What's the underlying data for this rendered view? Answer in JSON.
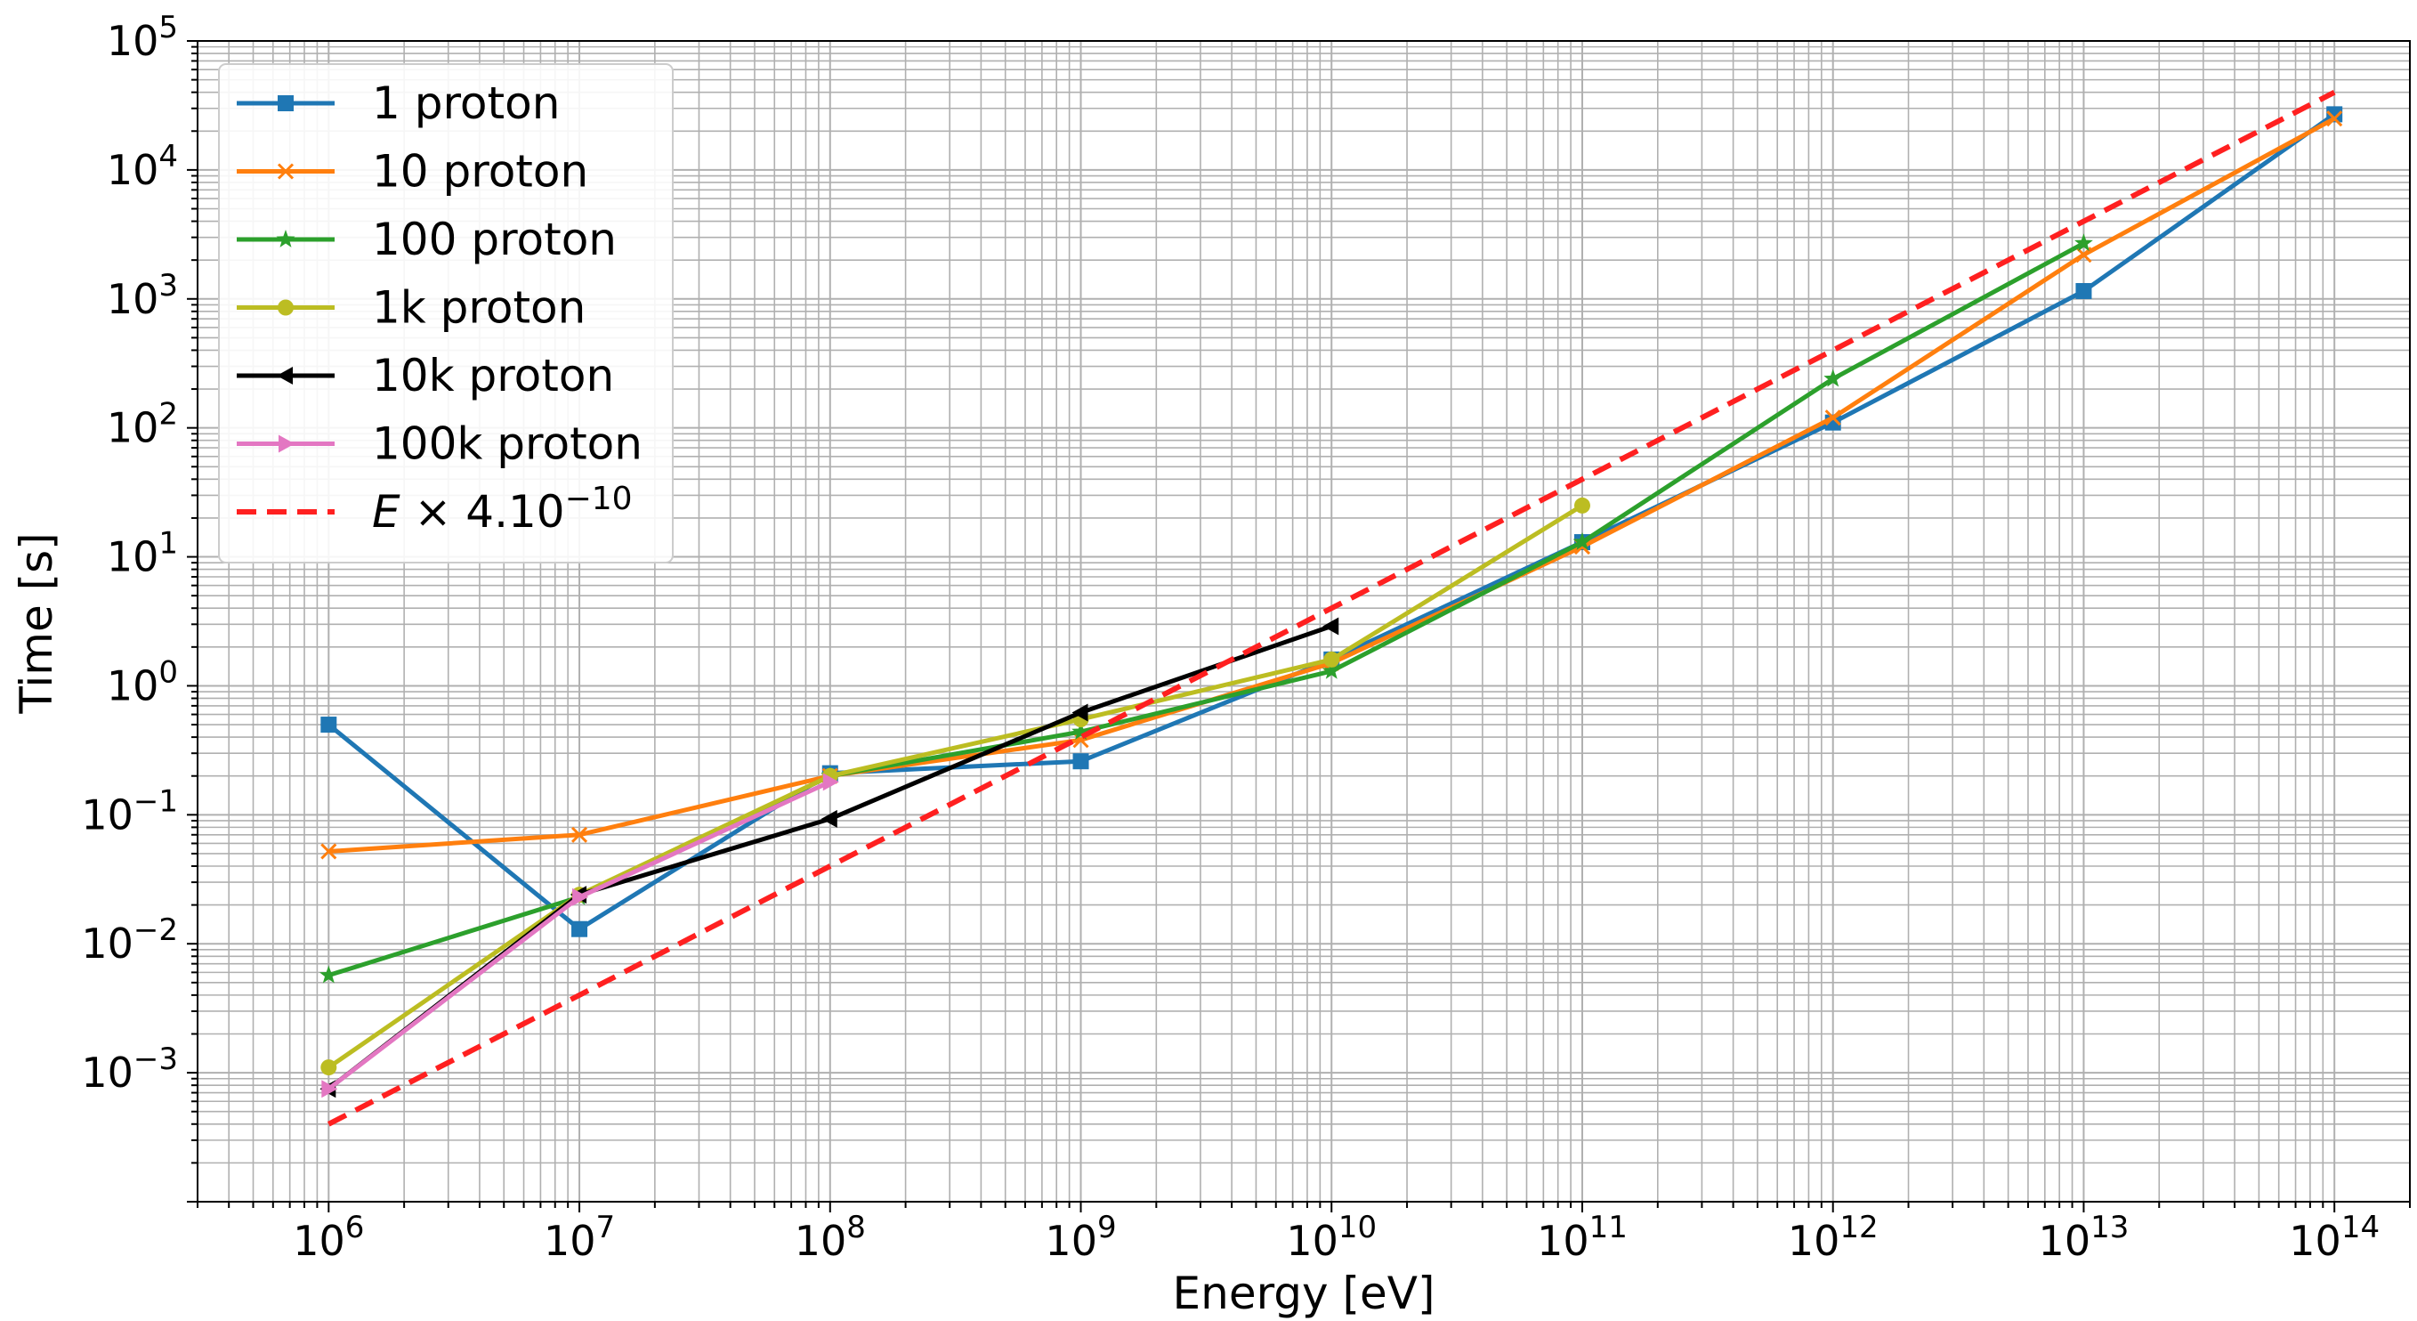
{
  "chart_data": {
    "type": "line",
    "xscale": "log",
    "yscale": "log",
    "title": "",
    "xlabel": "Energy [eV]",
    "ylabel": "Time [s]",
    "xlim": [
      300000,
      200000000000000
    ],
    "ylim": [
      0.0001,
      100000
    ],
    "grid": true,
    "legend_position": "top-left",
    "x_ticks": [
      {
        "value": 1000000,
        "base": "10",
        "exp": "6"
      },
      {
        "value": 10000000,
        "base": "10",
        "exp": "7"
      },
      {
        "value": 100000000,
        "base": "10",
        "exp": "8"
      },
      {
        "value": 1000000000,
        "base": "10",
        "exp": "9"
      },
      {
        "value": 10000000000,
        "base": "10",
        "exp": "10"
      },
      {
        "value": 100000000000,
        "base": "10",
        "exp": "11"
      },
      {
        "value": 1000000000000,
        "base": "10",
        "exp": "12"
      },
      {
        "value": 10000000000000,
        "base": "10",
        "exp": "13"
      },
      {
        "value": 100000000000000,
        "base": "10",
        "exp": "14"
      }
    ],
    "y_ticks": [
      {
        "value": 0.001,
        "base": "10",
        "exp": "−3"
      },
      {
        "value": 0.01,
        "base": "10",
        "exp": "−2"
      },
      {
        "value": 0.1,
        "base": "10",
        "exp": "−1"
      },
      {
        "value": 1,
        "base": "10",
        "exp": "0"
      },
      {
        "value": 10,
        "base": "10",
        "exp": "1"
      },
      {
        "value": 100,
        "base": "10",
        "exp": "2"
      },
      {
        "value": 1000,
        "base": "10",
        "exp": "3"
      },
      {
        "value": 10000,
        "base": "10",
        "exp": "4"
      },
      {
        "value": 100000,
        "base": "10",
        "exp": "5"
      }
    ],
    "series": [
      {
        "name": "1 proton",
        "color": "#1f77b4",
        "marker": "square",
        "dash": "solid",
        "x": [
          1000000.0,
          10000000.0,
          100000000.0,
          1000000000.0,
          10000000000.0,
          100000000000.0,
          1000000000000.0,
          10000000000000.0,
          100000000000000.0
        ],
        "y": [
          0.5,
          0.013,
          0.21,
          0.26,
          1.6,
          13,
          110,
          1150,
          27000
        ]
      },
      {
        "name": "10 proton",
        "color": "#ff7f0e",
        "marker": "x",
        "dash": "solid",
        "x": [
          1000000.0,
          10000000.0,
          100000000.0,
          1000000000.0,
          10000000000.0,
          100000000000.0,
          1000000000000.0,
          10000000000000.0,
          100000000000000.0
        ],
        "y": [
          0.052,
          0.07,
          0.2,
          0.38,
          1.5,
          12,
          120,
          2200,
          25000
        ]
      },
      {
        "name": "100 proton",
        "color": "#2ca02c",
        "marker": "star",
        "dash": "solid",
        "x": [
          1000000.0,
          10000000.0,
          100000000.0,
          1000000000.0,
          10000000000.0,
          100000000000.0,
          1000000000000.0,
          10000000000000.0
        ],
        "y": [
          0.0057,
          0.023,
          0.2,
          0.44,
          1.3,
          13,
          240,
          2700
        ]
      },
      {
        "name": "1k proton",
        "color": "#bcbd22",
        "marker": "circle",
        "dash": "solid",
        "x": [
          1000000.0,
          10000000.0,
          100000000.0,
          1000000000.0,
          10000000000.0,
          100000000000.0
        ],
        "y": [
          0.0011,
          0.024,
          0.2,
          0.55,
          1.6,
          25
        ]
      },
      {
        "name": "10k proton",
        "color": "#000000",
        "marker": "triangle-left",
        "dash": "solid",
        "x": [
          1000000.0,
          10000000.0,
          100000000.0,
          1000000000.0,
          10000000000.0
        ],
        "y": [
          0.00075,
          0.024,
          0.093,
          0.62,
          2.9
        ]
      },
      {
        "name": "100k proton",
        "color": "#e377c2",
        "marker": "triangle-right",
        "dash": "solid",
        "x": [
          1000000.0,
          10000000.0,
          100000000.0
        ],
        "y": [
          0.00075,
          0.023,
          0.18
        ]
      },
      {
        "name": "E × 4.10⁻¹⁰",
        "color": "#ff2020",
        "marker": "none",
        "dash": "dashed",
        "legend_main": "E × 4.10",
        "legend_sup": "−10",
        "x": [
          1000000.0,
          100000000000000.0
        ],
        "y": [
          0.0004,
          40000
        ]
      }
    ]
  }
}
